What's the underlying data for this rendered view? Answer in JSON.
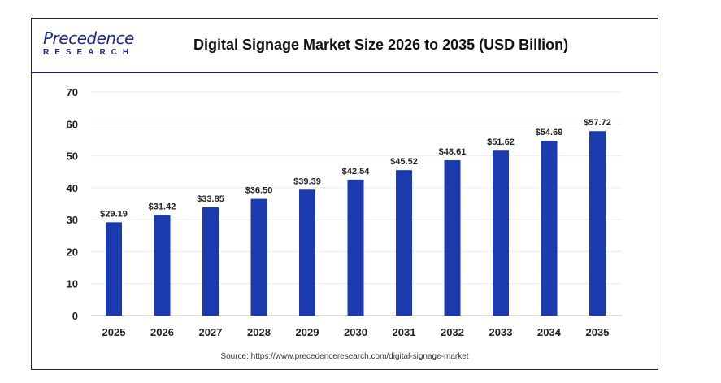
{
  "logo": {
    "line1": "Precedence",
    "line2": "RESEARCH"
  },
  "source": "Source: https://www.precedenceresearch.com/digital-signage-market",
  "chart_data": {
    "type": "bar",
    "title": "Digital Signage Market Size 2026 to 2035 (USD Billion)",
    "categories": [
      "2025",
      "2026",
      "2027",
      "2028",
      "2029",
      "2030",
      "2031",
      "2032",
      "2033",
      "2034",
      "2035"
    ],
    "values": [
      29.19,
      31.42,
      33.85,
      36.5,
      39.39,
      42.54,
      45.52,
      48.61,
      51.62,
      54.69,
      57.72
    ],
    "data_labels": [
      "$29.19",
      "$31.42",
      "$33.85",
      "$36.50",
      "$39.39",
      "$42.54",
      "$45.52",
      "$48.61",
      "$51.62",
      "$54.69",
      "$57.72"
    ],
    "yticks": [
      0,
      10,
      20,
      30,
      40,
      50,
      60,
      70
    ],
    "ylim": [
      0,
      70
    ],
    "grid": true,
    "bar_color": "#1a3aad",
    "xlabel": "",
    "ylabel": ""
  }
}
